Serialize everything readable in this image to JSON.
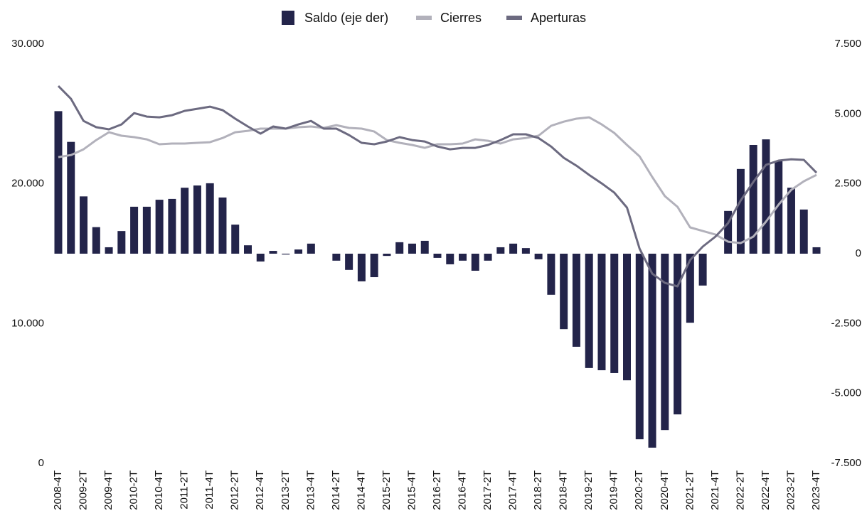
{
  "chart_data": {
    "type": "bar-line",
    "categories": [
      "2008-4T",
      null,
      "2009-2T",
      null,
      "2009-4T",
      null,
      "2010-2T",
      null,
      "2010-4T",
      null,
      "2011-2T",
      null,
      "2011-4T",
      null,
      "2012-2T",
      null,
      "2012-4T",
      null,
      "2013-2T",
      null,
      "2013-4T",
      null,
      "2014-2T",
      null,
      "2014-4T",
      null,
      "2015-2T",
      null,
      "2015-4T",
      null,
      "2016-2T",
      null,
      "2016-4T",
      null,
      "2017-2T",
      null,
      "2017-4T",
      null,
      "2018-2T",
      null,
      "2018-4T",
      null,
      "2019-2T",
      null,
      "2019-4T",
      null,
      "2020-2T",
      null,
      "2020-4T",
      null,
      "2021-2T",
      null,
      "2021-4T",
      null,
      "2022-2T",
      null,
      "2022-4T",
      null,
      "2023-2T",
      null,
      "2023-4T"
    ],
    "series": [
      {
        "name": "Saldo (eje der)",
        "type": "bar",
        "axis": "y2",
        "color": "#23244a",
        "values": [
          5100,
          4000,
          2050,
          950,
          230,
          810,
          1680,
          1680,
          1930,
          1960,
          2360,
          2440,
          2520,
          2010,
          1040,
          300,
          -280,
          100,
          -30,
          150,
          360,
          0,
          -250,
          -580,
          -990,
          -840,
          -80,
          410,
          360,
          460,
          -150,
          -380,
          -250,
          -610,
          -250,
          230,
          360,
          200,
          -200,
          -1470,
          -2700,
          -3330,
          -4090,
          -4170,
          -4270,
          -4530,
          -6640,
          -6940,
          -6310,
          -5750,
          -2470,
          -1140,
          0,
          1530,
          3030,
          3890,
          4090,
          3310,
          2360,
          1580,
          230
        ]
      },
      {
        "name": "Cierres",
        "type": "line",
        "color": "#b2b1bb",
        "values": [
          21910,
          22060,
          22470,
          23130,
          23690,
          23440,
          23340,
          23180,
          22830,
          22880,
          22880,
          22930,
          22980,
          23280,
          23690,
          23790,
          23950,
          23950,
          23950,
          24050,
          24100,
          24000,
          24200,
          24000,
          23950,
          23740,
          23130,
          22930,
          22780,
          22570,
          22830,
          22830,
          22880,
          23180,
          23080,
          22880,
          23180,
          23280,
          23440,
          24150,
          24450,
          24660,
          24760,
          24250,
          23640,
          22780,
          21960,
          20490,
          19120,
          18350,
          16880,
          16620,
          16370,
          15860,
          15760,
          16220,
          17290,
          18510,
          19570,
          20180,
          20640
        ]
      },
      {
        "name": "Aperturas",
        "type": "line",
        "color": "#6c6a80",
        "values": [
          27000,
          26080,
          24500,
          24050,
          23900,
          24250,
          25060,
          24810,
          24760,
          24910,
          25220,
          25370,
          25520,
          25270,
          24660,
          24100,
          23590,
          24100,
          23950,
          24250,
          24500,
          23950,
          23950,
          23490,
          22930,
          22830,
          23030,
          23340,
          23130,
          23030,
          22670,
          22470,
          22570,
          22570,
          22780,
          23130,
          23540,
          23540,
          23280,
          22670,
          21860,
          21300,
          20640,
          20030,
          19370,
          18300,
          15350,
          13570,
          12910,
          12660,
          14540,
          15510,
          16220,
          17180,
          18810,
          20130,
          21350,
          21660,
          21760,
          21710,
          20790
        ]
      }
    ],
    "ylim": [
      0,
      30000
    ],
    "yticks": [
      0,
      {
        "value": 10000,
        "label": "10.000"
      },
      {
        "value": 20000,
        "label": "20.000"
      },
      {
        "value": 30000,
        "label": "30.000"
      }
    ],
    "y2lim": [
      -7500,
      7500
    ],
    "y2ticks": [
      {
        "value": -7500,
        "label": "-7.500"
      },
      {
        "value": -5000,
        "label": "-5.000"
      },
      {
        "value": -2500,
        "label": "-2.500"
      },
      0,
      {
        "value": 2500,
        "label": "2.500"
      },
      {
        "value": 5000,
        "label": "5.000"
      },
      {
        "value": 7500,
        "label": "7.500"
      }
    ],
    "legend": "top"
  }
}
